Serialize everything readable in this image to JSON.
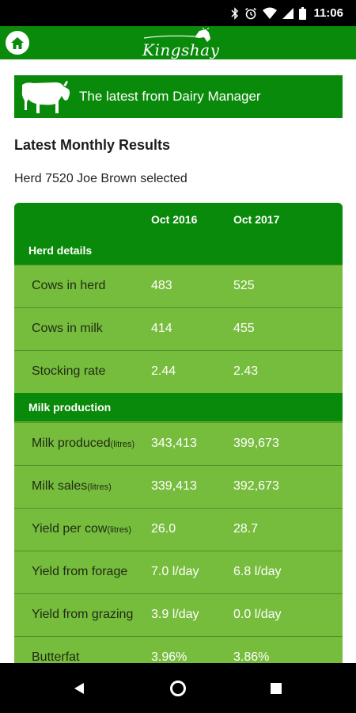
{
  "status_bar": {
    "time": "11:06",
    "icons": [
      "bluetooth-icon",
      "alarm-icon",
      "wifi-icon",
      "signal-icon",
      "battery-icon"
    ]
  },
  "app_header": {
    "logo_text": "Kingshay",
    "home_icon": "home-icon",
    "colors": {
      "primary": "#0a8a0a",
      "table": "#77bd3d"
    }
  },
  "banner": {
    "text": "The latest from Dairy Manager",
    "icon": "cow-icon"
  },
  "section_title": "Latest Monthly Results",
  "herd_text": "Herd 7520 Joe Brown selected",
  "table": {
    "columns": [
      "Oct 2016",
      "Oct 2017"
    ],
    "groups": [
      {
        "label": "Herd details",
        "rows": [
          {
            "label": "Cows in herd",
            "unit": "",
            "v1": "483",
            "v2": "525"
          },
          {
            "label": "Cows in milk",
            "unit": "",
            "v1": "414",
            "v2": "455"
          },
          {
            "label": "Stocking rate",
            "unit": "",
            "v1": "2.44",
            "v2": "2.43"
          }
        ]
      },
      {
        "label": "Milk production",
        "rows": [
          {
            "label": "Milk produced",
            "unit": "(litres)",
            "v1": "343,413",
            "v2": "399,673"
          },
          {
            "label": "Milk sales",
            "unit": "(litres)",
            "v1": "339,413",
            "v2": "392,673"
          },
          {
            "label": "Yield per cow",
            "unit": "(litres)",
            "v1": "26.0",
            "v2": "28.7"
          },
          {
            "label": "Yield from forage",
            "unit": "",
            "v1": "7.0 l/day",
            "v2": "6.8 l/day"
          },
          {
            "label": "Yield from grazing",
            "unit": "",
            "v1": "3.9 l/day",
            "v2": "0.0 l/day"
          },
          {
            "label": "Butterfat",
            "unit": "",
            "v1": "3.96%",
            "v2": "3.86%"
          }
        ]
      }
    ]
  },
  "nav_bar": {
    "icons": [
      "back-icon",
      "home-nav-icon",
      "recents-icon"
    ]
  }
}
